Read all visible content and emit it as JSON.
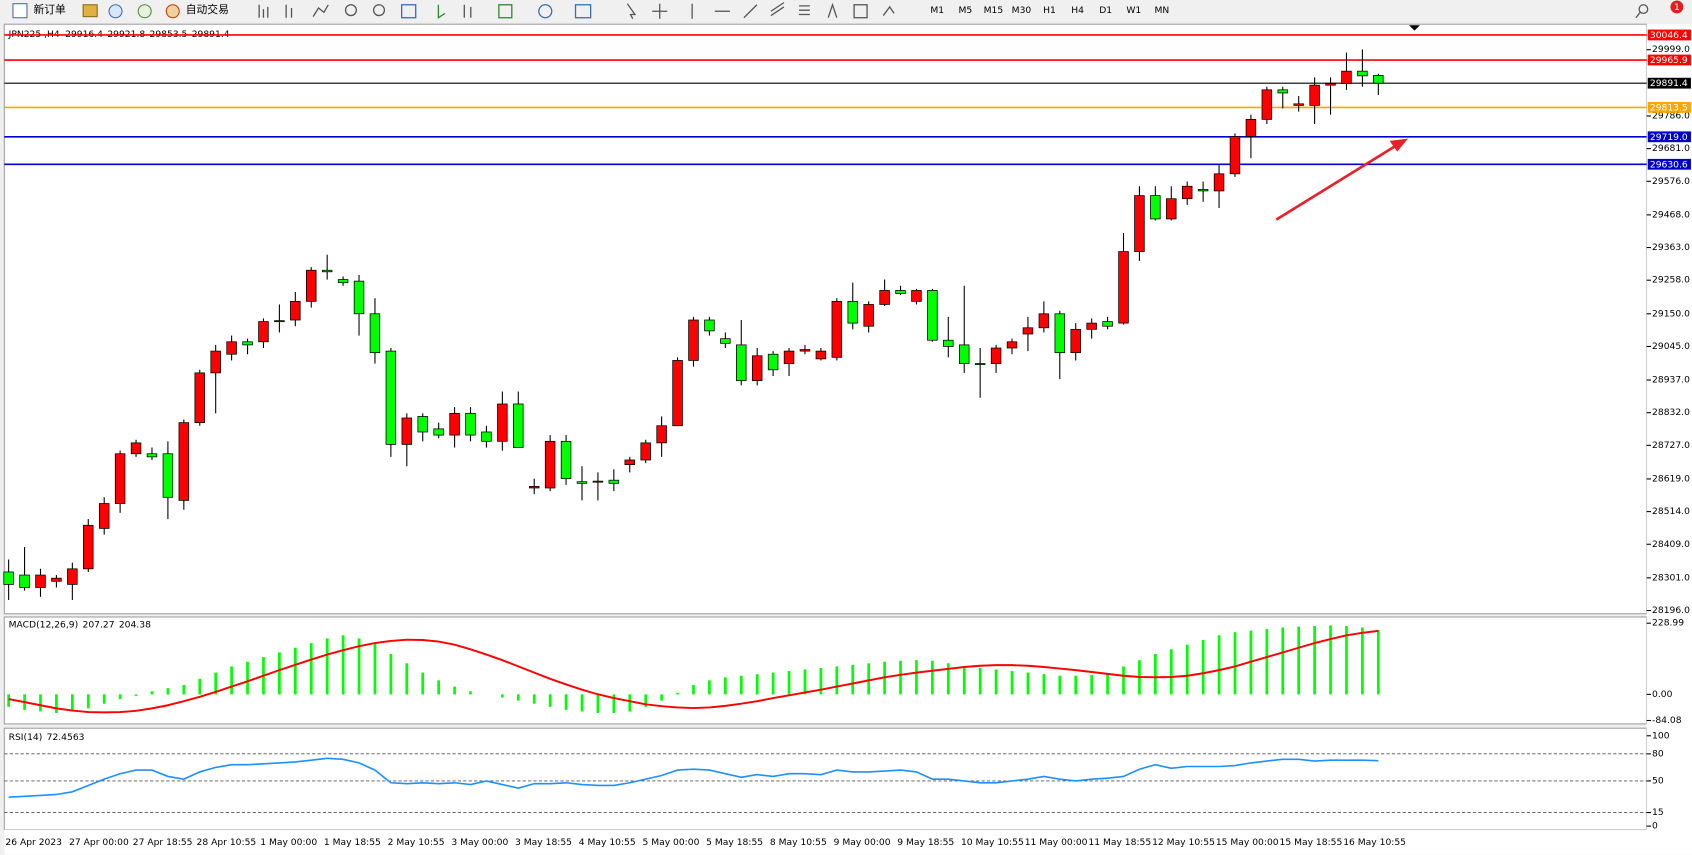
{
  "toolbar": {
    "new_order": "新订单",
    "auto_trading": "自动交易",
    "timeframes": [
      "M1",
      "M5",
      "M15",
      "M30",
      "H1",
      "H4",
      "D1",
      "W1",
      "MN"
    ],
    "notifications": 1
  },
  "chart_data": [
    {
      "type": "candlestick",
      "symbol": "JPN225 ,H4",
      "up_color": "#ff0000",
      "down_color": "#00ff00",
      "categories": [
        "26 Apr 2023",
        null,
        null,
        null,
        "27 Apr 00:00",
        null,
        null,
        null,
        "27 Apr 18:55",
        null,
        null,
        null,
        "28 Apr 10:55",
        null,
        null,
        null,
        "1 May 00:00",
        null,
        null,
        null,
        "1 May 18:55",
        null,
        null,
        null,
        "2 May 10:55",
        null,
        null,
        null,
        "3 May 00:00",
        null,
        null,
        null,
        "3 May 18:55",
        null,
        null,
        null,
        "4 May 10:55",
        null,
        null,
        null,
        "5 May 00:00",
        null,
        null,
        null,
        "5 May 18:55",
        null,
        null,
        null,
        "8 May 10:55",
        null,
        null,
        null,
        "9 May 00:00",
        null,
        null,
        null,
        "9 May 18:55",
        null,
        null,
        null,
        "10 May 10:55",
        null,
        null,
        null,
        "11 May 00:00",
        null,
        null,
        null,
        "11 May 18:55",
        null,
        null,
        null,
        "12 May 10:55",
        null,
        null,
        null,
        "15 May 00:00",
        null,
        null,
        null,
        "15 May 18:55",
        null,
        null,
        null,
        "16 May 10:55",
        null,
        null
      ],
      "open": [
        28320,
        28310,
        28270,
        28290,
        28280,
        28330,
        28460,
        28540,
        28700,
        28700,
        28700,
        28550,
        28800,
        28960,
        29020,
        29060,
        29060,
        29125,
        29130,
        29190,
        29290,
        29260,
        29255,
        29150,
        29030,
        28730,
        28820,
        28780,
        28760,
        28830,
        28770,
        28740,
        28860,
        28590,
        28590,
        28740,
        28610,
        28610,
        28615,
        28665,
        28680,
        28735,
        28790,
        29000,
        29130,
        29070,
        29050,
        28935,
        29020,
        28990,
        29030,
        29005,
        29010,
        29190,
        29110,
        29180,
        29225,
        29190,
        29225,
        29065,
        29050,
        28990,
        28990,
        29040,
        29085,
        29105,
        29150,
        29025,
        29100,
        29125,
        29120,
        29350,
        29530,
        29455,
        29520,
        29550,
        29545,
        29600,
        29720,
        29775,
        29870,
        29820,
        29820,
        29885,
        29890,
        29930,
        29916.4
      ],
      "high": [
        28360,
        28400,
        28330,
        28310,
        28350,
        28490,
        28560,
        28710,
        28745,
        28720,
        28740,
        28810,
        28970,
        29050,
        29080,
        29070,
        29135,
        29180,
        29220,
        29300,
        29340,
        29270,
        29275,
        29200,
        29040,
        28830,
        28830,
        28800,
        28850,
        28850,
        28790,
        28900,
        28900,
        28620,
        28760,
        28760,
        28660,
        28640,
        28650,
        28690,
        28745,
        28820,
        29010,
        29140,
        29140,
        29090,
        29130,
        29040,
        29030,
        29040,
        29050,
        29040,
        29200,
        29250,
        29190,
        29260,
        29240,
        29230,
        29230,
        29140,
        29240,
        29040,
        29050,
        29070,
        29140,
        29190,
        29160,
        29120,
        29135,
        29140,
        29410,
        29560,
        29560,
        29560,
        29575,
        29575,
        29630,
        29730,
        29790,
        29880,
        29880,
        29850,
        29910,
        29910,
        29990,
        30000,
        29921.8
      ],
      "low": [
        28230,
        28260,
        28240,
        28270,
        28230,
        28320,
        28440,
        28510,
        28690,
        28680,
        28490,
        28520,
        28790,
        28830,
        29000,
        29020,
        29040,
        29090,
        29110,
        29170,
        29260,
        29240,
        29080,
        28990,
        28690,
        28660,
        28740,
        28750,
        28720,
        28740,
        28720,
        28710,
        28720,
        28570,
        28580,
        28600,
        28550,
        28550,
        28580,
        28640,
        28670,
        28690,
        28790,
        28980,
        29080,
        29040,
        28920,
        28920,
        28950,
        28950,
        29020,
        29000,
        29000,
        29100,
        29090,
        29175,
        29210,
        29180,
        29060,
        29010,
        28960,
        28880,
        28960,
        29020,
        29030,
        29090,
        28940,
        29000,
        29070,
        29100,
        29115,
        29320,
        29450,
        29450,
        29500,
        29510,
        29490,
        29590,
        29650,
        29760,
        29810,
        29800,
        29760,
        29790,
        29870,
        29880,
        29853.5
      ],
      "close": [
        28280,
        28270,
        28310,
        28300,
        28330,
        28470,
        28540,
        28700,
        28735,
        28690,
        28560,
        28800,
        28960,
        29030,
        29060,
        29050,
        29125,
        29128,
        29190,
        29290,
        29285,
        29250,
        29150,
        29025,
        28730,
        28815,
        28770,
        28760,
        28830,
        28760,
        28740,
        28860,
        28720,
        28595,
        28740,
        28620,
        28605,
        28612,
        28605,
        28680,
        28735,
        28790,
        29000,
        29130,
        29095,
        29055,
        28935,
        29015,
        28970,
        29030,
        29035,
        29030,
        29190,
        29120,
        29180,
        29225,
        29215,
        29225,
        29065,
        29045,
        28990,
        28988,
        29040,
        29060,
        29105,
        29150,
        29025,
        29100,
        29120,
        29110,
        29350,
        29530,
        29455,
        29520,
        29560,
        29545,
        29600,
        29720,
        29775,
        29870,
        29860,
        29825,
        29885,
        29890,
        29930,
        29915,
        29891.4
      ],
      "ylim": [
        28196,
        30081
      ],
      "yticks": [
        {
          "value": 29999,
          "label": "29999.0"
        },
        {
          "value": 29786,
          "label": "29786.0"
        },
        {
          "value": 29681,
          "label": "29681.0"
        },
        {
          "value": 29576,
          "label": "29576.0"
        },
        {
          "value": 29468,
          "label": "29468.0"
        },
        {
          "value": 29363,
          "label": "29363.0"
        },
        {
          "value": 29258,
          "label": "29258.0"
        },
        {
          "value": 29150,
          "label": "29150.0"
        },
        {
          "value": 29045,
          "label": "29045.0"
        },
        {
          "value": 28937,
          "label": "28937.0"
        },
        {
          "value": 28832,
          "label": "28832.0"
        },
        {
          "value": 28727,
          "label": "28727.0"
        },
        {
          "value": 28619,
          "label": "28619.0"
        },
        {
          "value": 28514,
          "label": "28514.0"
        },
        {
          "value": 28409,
          "label": "28409.0"
        },
        {
          "value": 28301,
          "label": "28301.0"
        },
        {
          "value": 28196,
          "label": "28196.0"
        }
      ],
      "levels": [
        {
          "value": 30046.4,
          "color": "#ff0000"
        },
        {
          "value": 29965.9,
          "color": "#ff0000"
        },
        {
          "value": 29813.5,
          "color": "#ffa500"
        },
        {
          "value": 29719,
          "label": "29719.0",
          "color": "#0000cd"
        },
        {
          "value": 29630.6,
          "color": "#0000cd"
        }
      ]
    },
    {
      "type": "macd",
      "name": "MACD(12,26,9)",
      "histogram_color": "#00ff00",
      "signal_color": "#ff0000",
      "histogram": [
        -40,
        -50,
        -55,
        -60,
        -55,
        -45,
        -30,
        -15,
        -5,
        10,
        20,
        30,
        50,
        70,
        90,
        105,
        120,
        135,
        150,
        165,
        180,
        190,
        180,
        165,
        130,
        100,
        70,
        45,
        25,
        10,
        0,
        -10,
        -20,
        -30,
        -40,
        -50,
        -55,
        -60,
        -60,
        -55,
        -40,
        -20,
        5,
        30,
        45,
        55,
        60,
        65,
        70,
        75,
        80,
        85,
        90,
        95,
        100,
        105,
        108,
        110,
        108,
        100,
        90,
        85,
        80,
        75,
        70,
        65,
        60,
        60,
        62,
        65,
        90,
        110,
        130,
        145,
        160,
        175,
        190,
        200,
        205,
        210,
        215,
        218,
        220,
        222,
        220,
        215,
        207.27
      ],
      "signal": [
        -15,
        -25,
        -35,
        -45,
        -52,
        -57,
        -58,
        -57,
        -53,
        -45,
        -35,
        -22,
        -8,
        8,
        25,
        42,
        60,
        78,
        95,
        112,
        128,
        142,
        155,
        165,
        172,
        176,
        175,
        170,
        160,
        145,
        128,
        110,
        90,
        70,
        50,
        32,
        15,
        0,
        -12,
        -22,
        -32,
        -38,
        -42,
        -44,
        -42,
        -37,
        -30,
        -22,
        -12,
        -3,
        6,
        15,
        25,
        35,
        45,
        55,
        63,
        70,
        76,
        82,
        88,
        92,
        94,
        94,
        92,
        88,
        83,
        78,
        72,
        66,
        60,
        56,
        55,
        56,
        60,
        68,
        78,
        90,
        105,
        120,
        135,
        150,
        165,
        178,
        190,
        198,
        204.38
      ],
      "ylim": [
        -95,
        242
      ],
      "yticks": [
        228.99,
        {
          "value": 0,
          "label": "0.00"
        },
        -84.08
      ]
    },
    {
      "type": "rsi",
      "name": "RSI(14)",
      "color": "#1e90ff",
      "values": [
        32,
        33,
        34,
        35,
        38,
        45,
        52,
        58,
        62,
        62,
        55,
        52,
        60,
        65,
        68,
        68,
        69,
        70,
        71,
        73,
        75,
        74,
        70,
        62,
        48,
        47,
        48,
        47,
        48,
        46,
        50,
        46,
        42,
        47,
        47,
        48,
        46,
        45,
        45,
        48,
        52,
        56,
        62,
        63,
        62,
        58,
        54,
        57,
        55,
        58,
        58,
        57,
        62,
        60,
        60,
        61,
        62,
        60,
        52,
        52,
        50,
        48,
        48,
        50,
        52,
        55,
        52,
        50,
        52,
        53,
        55,
        63,
        68,
        64,
        66,
        66,
        66,
        67,
        70,
        72,
        74,
        74,
        72,
        73,
        73,
        73,
        72.4563
      ],
      "ylim": [
        -4,
        106
      ],
      "yticks": [
        100,
        80,
        50,
        15,
        0
      ],
      "levels": [
        80,
        50,
        15
      ]
    }
  ]
}
